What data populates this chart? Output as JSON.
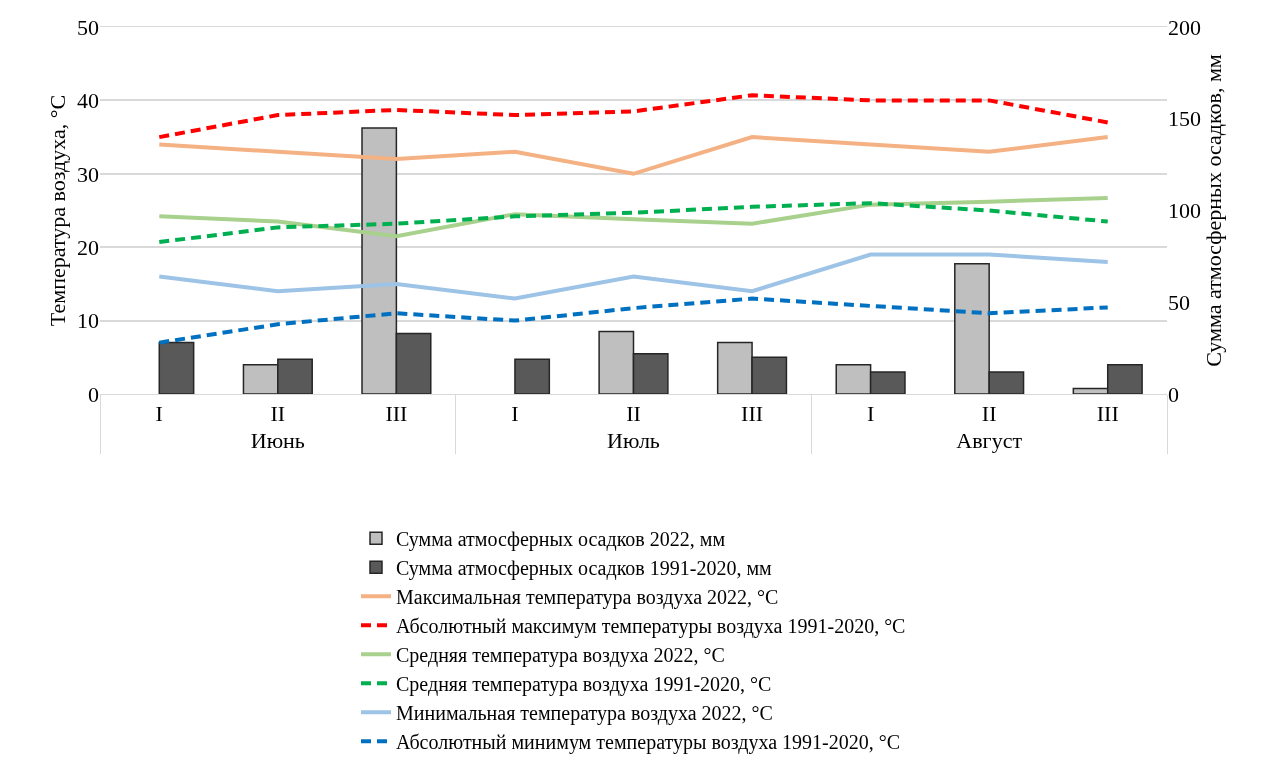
{
  "chart_data": {
    "type": "bar",
    "ylabel": "Температура воздуха, °C",
    "y2label": "Сумма атмосферных осадков, мм",
    "categories": [
      "I",
      "II",
      "III",
      "I",
      "II",
      "III",
      "I",
      "II",
      "III"
    ],
    "annotations": [
      "Июнь",
      "Июль",
      "Август"
    ],
    "series": [
      {
        "name": "Сумма атмосферных осадков 2022, мм",
        "axis": "y2",
        "color": "#bfbfbf",
        "values": [
          null,
          16,
          145,
          null,
          34,
          28,
          16,
          71,
          3
        ]
      },
      {
        "name": "Сумма атмосферных осадков 1991-2020, мм",
        "axis": "y2",
        "color": "#595959",
        "values": [
          28,
          19,
          33,
          19,
          22,
          20,
          12,
          12,
          16
        ]
      },
      {
        "name": "Максимальная температура воздуха 2022, °C",
        "type": "line",
        "line_style": "solid",
        "color": "#f4b183",
        "values": [
          34,
          33,
          32,
          33,
          30,
          35,
          34,
          33,
          35
        ]
      },
      {
        "name": "Абсолютный максимум температуры воздуха 1991-2020, °C",
        "type": "line",
        "line_style": "dashed",
        "color": "#ff0000",
        "values": [
          35,
          38,
          38.7,
          38,
          38.5,
          40.7,
          40,
          40,
          37
        ]
      },
      {
        "name": "Средняя температура воздуха 2022, °C",
        "type": "line",
        "line_style": "solid",
        "color": "#a9d18e",
        "values": [
          24.2,
          23.5,
          21.5,
          24.5,
          23.8,
          23.2,
          25.8,
          26.2,
          26.7
        ]
      },
      {
        "name": "Средняя температура воздуха 1991-2020, °C",
        "type": "line",
        "line_style": "dashed",
        "color": "#00b050",
        "values": [
          20.7,
          22.7,
          23.2,
          24.2,
          24.7,
          25.5,
          26,
          25,
          23.5
        ]
      },
      {
        "name": "Минимальная температура воздуха 2022, °C",
        "type": "line",
        "line_style": "solid",
        "color": "#9dc3e6",
        "values": [
          16,
          14,
          15,
          13,
          16,
          14,
          19,
          19,
          18
        ]
      },
      {
        "name": "Абсолютный минимум температуры воздуха 1991-2020, °C",
        "type": "line",
        "line_style": "dashed",
        "color": "#0070c0",
        "values": [
          7,
          9.5,
          11,
          10,
          11.7,
          13,
          12,
          11,
          11.8
        ]
      }
    ],
    "ylim": [
      0,
      50
    ],
    "yticks": [
      0,
      10,
      20,
      30,
      40,
      50
    ],
    "y2lim": [
      0,
      200
    ],
    "y2ticks": [
      0,
      50,
      100,
      150,
      200
    ],
    "grid": "y",
    "legend": "bottom"
  }
}
